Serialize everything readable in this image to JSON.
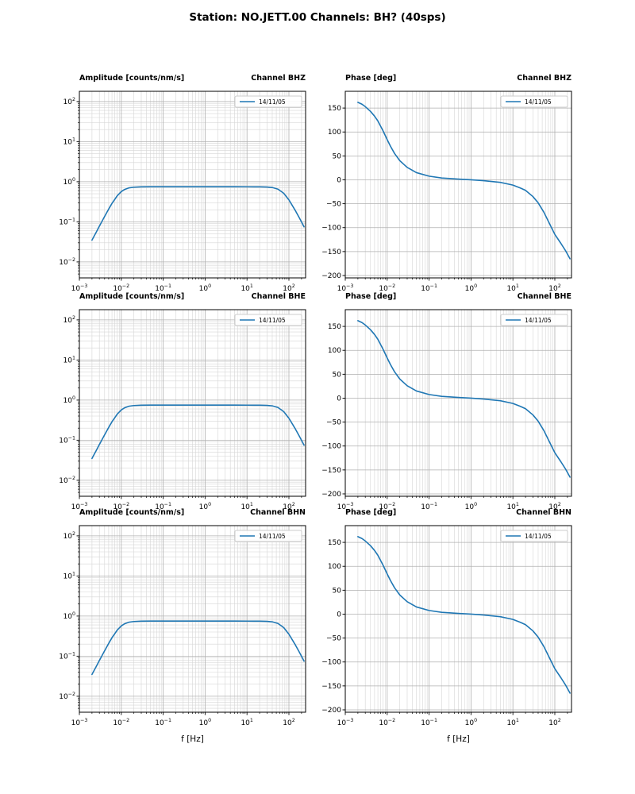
{
  "figure": {
    "title": "Station: NO.JETT.00 Channels: BH? (40sps)",
    "xlabel": "f [Hz]",
    "legend_label": "14/11/05",
    "colors": {
      "line": "#1f77b4",
      "grid_major": "#b0b0b0",
      "grid_minor": "#d6d6d6",
      "spine": "#000000",
      "background": "#ffffff",
      "legend_edge": "#cccccc"
    }
  },
  "chart_data": [
    {
      "type": "line",
      "row": 0,
      "col": 0,
      "title_left": "Amplitude [counts/nm/s]",
      "title_right": "Channel BHZ",
      "legend": "14/11/05",
      "xscale": "log",
      "yscale": "log",
      "xlim": [
        0.001,
        250
      ],
      "ylim": [
        0.004,
        180
      ],
      "xticks": [
        0.001,
        0.01,
        0.1,
        1,
        10,
        100
      ],
      "yticks": [
        0.01,
        0.1,
        1,
        10,
        100
      ],
      "xlabel": "",
      "x": [
        0.002,
        0.0025,
        0.003,
        0.004,
        0.005,
        0.006,
        0.008,
        0.01,
        0.012,
        0.015,
        0.02,
        0.03,
        0.05,
        0.1,
        0.2,
        0.5,
        1,
        2,
        5,
        10,
        15,
        20,
        30,
        40,
        55,
        75,
        100,
        140,
        180,
        230
      ],
      "y": [
        0.035,
        0.054,
        0.078,
        0.136,
        0.208,
        0.288,
        0.446,
        0.567,
        0.643,
        0.7,
        0.732,
        0.747,
        0.75,
        0.75,
        0.75,
        0.75,
        0.75,
        0.75,
        0.75,
        0.749,
        0.748,
        0.747,
        0.739,
        0.718,
        0.652,
        0.516,
        0.353,
        0.197,
        0.122,
        0.075
      ]
    },
    {
      "type": "line",
      "row": 0,
      "col": 1,
      "title_left": "Phase [deg]",
      "title_right": "Channel BHZ",
      "legend": "14/11/05",
      "xscale": "log",
      "yscale": "linear",
      "xlim": [
        0.001,
        250
      ],
      "ylim": [
        -205,
        185
      ],
      "xticks": [
        0.001,
        0.01,
        0.1,
        1,
        10,
        100
      ],
      "yticks": [
        -200,
        -150,
        -100,
        -50,
        0,
        50,
        100,
        150
      ],
      "xlabel": "",
      "x": [
        0.002,
        0.0025,
        0.003,
        0.004,
        0.005,
        0.006,
        0.008,
        0.01,
        0.012,
        0.015,
        0.02,
        0.03,
        0.05,
        0.1,
        0.2,
        0.5,
        1,
        2,
        5,
        10,
        15,
        20,
        30,
        40,
        55,
        75,
        100,
        140,
        180,
        230
      ],
      "y": [
        162,
        158,
        153,
        143,
        133,
        123,
        102,
        84,
        70,
        55,
        40,
        26,
        15,
        7.6,
        3.8,
        1.5,
        0,
        -1.8,
        -5.3,
        -11,
        -17,
        -22,
        -35,
        -48,
        -68,
        -92,
        -114,
        -133,
        -148,
        -165
      ]
    },
    {
      "type": "line",
      "row": 1,
      "col": 0,
      "title_left": "Amplitude [counts/nm/s]",
      "title_right": "Channel BHE",
      "legend": "14/11/05",
      "xscale": "log",
      "yscale": "log",
      "xlim": [
        0.001,
        250
      ],
      "ylim": [
        0.004,
        180
      ],
      "xticks": [
        0.001,
        0.01,
        0.1,
        1,
        10,
        100
      ],
      "yticks": [
        0.01,
        0.1,
        1,
        10,
        100
      ],
      "xlabel": "",
      "x": [
        0.002,
        0.0025,
        0.003,
        0.004,
        0.005,
        0.006,
        0.008,
        0.01,
        0.012,
        0.015,
        0.02,
        0.03,
        0.05,
        0.1,
        0.2,
        0.5,
        1,
        2,
        5,
        10,
        15,
        20,
        30,
        40,
        55,
        75,
        100,
        140,
        180,
        230
      ],
      "y": [
        0.035,
        0.054,
        0.078,
        0.136,
        0.208,
        0.288,
        0.446,
        0.567,
        0.643,
        0.7,
        0.732,
        0.747,
        0.75,
        0.75,
        0.75,
        0.75,
        0.75,
        0.75,
        0.75,
        0.749,
        0.748,
        0.747,
        0.739,
        0.718,
        0.652,
        0.516,
        0.353,
        0.197,
        0.122,
        0.075
      ]
    },
    {
      "type": "line",
      "row": 1,
      "col": 1,
      "title_left": "Phase [deg]",
      "title_right": "Channel BHE",
      "legend": "14/11/05",
      "xscale": "log",
      "yscale": "linear",
      "xlim": [
        0.001,
        250
      ],
      "ylim": [
        -205,
        185
      ],
      "xticks": [
        0.001,
        0.01,
        0.1,
        1,
        10,
        100
      ],
      "yticks": [
        -200,
        -150,
        -100,
        -50,
        0,
        50,
        100,
        150
      ],
      "xlabel": "",
      "x": [
        0.002,
        0.0025,
        0.003,
        0.004,
        0.005,
        0.006,
        0.008,
        0.01,
        0.012,
        0.015,
        0.02,
        0.03,
        0.05,
        0.1,
        0.2,
        0.5,
        1,
        2,
        5,
        10,
        15,
        20,
        30,
        40,
        55,
        75,
        100,
        140,
        180,
        230
      ],
      "y": [
        162,
        158,
        153,
        143,
        133,
        123,
        102,
        84,
        70,
        55,
        40,
        26,
        15,
        7.6,
        3.8,
        1.5,
        0,
        -1.8,
        -5.3,
        -11,
        -17,
        -22,
        -35,
        -48,
        -68,
        -92,
        -114,
        -133,
        -148,
        -165
      ]
    },
    {
      "type": "line",
      "row": 2,
      "col": 0,
      "title_left": "Amplitude [counts/nm/s]",
      "title_right": "Channel BHN",
      "legend": "14/11/05",
      "xscale": "log",
      "yscale": "log",
      "xlim": [
        0.001,
        250
      ],
      "ylim": [
        0.004,
        180
      ],
      "xticks": [
        0.001,
        0.01,
        0.1,
        1,
        10,
        100
      ],
      "yticks": [
        0.01,
        0.1,
        1,
        10,
        100
      ],
      "xlabel": "f [Hz]",
      "x": [
        0.002,
        0.0025,
        0.003,
        0.004,
        0.005,
        0.006,
        0.008,
        0.01,
        0.012,
        0.015,
        0.02,
        0.03,
        0.05,
        0.1,
        0.2,
        0.5,
        1,
        2,
        5,
        10,
        15,
        20,
        30,
        40,
        55,
        75,
        100,
        140,
        180,
        230
      ],
      "y": [
        0.035,
        0.054,
        0.078,
        0.136,
        0.208,
        0.288,
        0.446,
        0.567,
        0.643,
        0.7,
        0.732,
        0.747,
        0.75,
        0.75,
        0.75,
        0.75,
        0.75,
        0.75,
        0.75,
        0.749,
        0.748,
        0.747,
        0.739,
        0.718,
        0.652,
        0.516,
        0.353,
        0.197,
        0.122,
        0.075
      ]
    },
    {
      "type": "line",
      "row": 2,
      "col": 1,
      "title_left": "Phase [deg]",
      "title_right": "Channel BHN",
      "legend": "14/11/05",
      "xscale": "log",
      "yscale": "linear",
      "xlim": [
        0.001,
        250
      ],
      "ylim": [
        -205,
        185
      ],
      "xticks": [
        0.001,
        0.01,
        0.1,
        1,
        10,
        100
      ],
      "yticks": [
        -200,
        -150,
        -100,
        -50,
        0,
        50,
        100,
        150
      ],
      "xlabel": "f [Hz]",
      "x": [
        0.002,
        0.0025,
        0.003,
        0.004,
        0.005,
        0.006,
        0.008,
        0.01,
        0.012,
        0.015,
        0.02,
        0.03,
        0.05,
        0.1,
        0.2,
        0.5,
        1,
        2,
        5,
        10,
        15,
        20,
        30,
        40,
        55,
        75,
        100,
        140,
        180,
        230
      ],
      "y": [
        162,
        158,
        153,
        143,
        133,
        123,
        102,
        84,
        70,
        55,
        40,
        26,
        15,
        7.6,
        3.8,
        1.5,
        0,
        -1.8,
        -5.3,
        -11,
        -17,
        -22,
        -35,
        -48,
        -68,
        -92,
        -114,
        -133,
        -148,
        -165
      ]
    }
  ]
}
